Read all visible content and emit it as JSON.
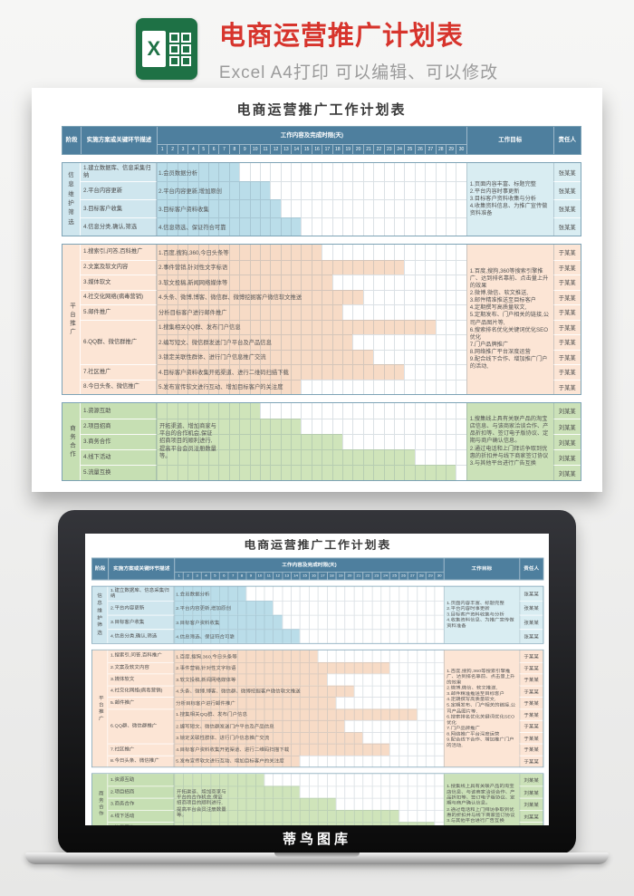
{
  "header": {
    "title": "电商运营推广计划表",
    "subtitle": "Excel A4打印 可以编辑、可以修改",
    "icon": "excel-icon"
  },
  "watermark": "蒂鸟图库",
  "colors": {
    "title_red": "#d7342c",
    "subtitle_gray": "#9b9b9b",
    "excel_green": "#1e7145",
    "table_header_teal": "#4e7f9e"
  },
  "sheet": {
    "title": "电商运营推广工作计划表",
    "columns": {
      "stage": "阶段",
      "desc": "实施方案或关键环节描述",
      "gantt": "工作内容及完成时限(天)",
      "goal": "工作目标",
      "owner": "责任人"
    },
    "days": 30,
    "day_labels": [
      "1",
      "2",
      "3",
      "4",
      "5",
      "6",
      "7",
      "8",
      "9",
      "10",
      "11",
      "12",
      "13",
      "14",
      "15",
      "16",
      "17",
      "18",
      "19",
      "20",
      "21",
      "22",
      "23",
      "24",
      "25",
      "26",
      "27",
      "28",
      "29",
      "30"
    ],
    "sections": [
      {
        "stage": "信息维护筛选",
        "fill": "#cfe6ee",
        "bar": "#badde9",
        "tint": "#d9edf2",
        "descs": [
          {
            "text": "1.建立数据库、信息采集归纳",
            "span": 1
          },
          {
            "text": "2.平台内容更新",
            "span": 1
          },
          {
            "text": "3.目标客户收集",
            "span": 1
          },
          {
            "text": "4.信息分类,确认,筛选",
            "span": 1
          }
        ],
        "rows": [
          {
            "content": "1.会员数据分析",
            "bar_end": 8,
            "owner": "张某某"
          },
          {
            "content": "2.平台内容更新,增加原创",
            "bar_end": 11,
            "owner": "张某某"
          },
          {
            "content": "3.目标客户资料收集",
            "bar_end": 12,
            "owner": "张某某"
          },
          {
            "content": "4.信息筛选、保证符合可靠",
            "bar_end": 14,
            "owner": "张某某"
          }
        ],
        "goal_lines": [
          "1.页面内容丰富、标题完整",
          "2.平台内容时事更新",
          "3.目标客户资料收集与分析",
          "4.收集资料信息、为推广宣传做资料准备"
        ]
      },
      {
        "stage": "平台推广",
        "fill": "#fce5d5",
        "bar": "#f7dbc6",
        "tint": "#fce5d5",
        "descs": [
          {
            "text": "1.搜索引,问答,百科推广",
            "span": 1
          },
          {
            "text": "2.文案及软文内容",
            "span": 1
          },
          {
            "text": "3.媒体软文",
            "span": 1
          },
          {
            "text": "4.社交化网络(病毒营销)",
            "span": 1
          },
          {
            "text": "5.邮件推广",
            "span": 1
          },
          {
            "text": "6.QQ群、微信群推广",
            "span": 3
          },
          {
            "text": "7.社区推广",
            "span": 1
          },
          {
            "text": "8.今日头条、微信推广",
            "span": 1
          }
        ],
        "rows": [
          {
            "content": "1.百度,搜狗,360,今日头条等",
            "bar_end": 16,
            "owner": "于某某"
          },
          {
            "content": "2.事件营销,针对性文字标语",
            "bar_end": 24,
            "owner": "于某某"
          },
          {
            "content": "3.软文投稿,新闻网络媒体等",
            "bar_end": 17,
            "owner": "于某某"
          },
          {
            "content": "4.头条、微博,博客、微信群、微博挖掘客户微信软文推送",
            "bar_end": 20,
            "owner": "于某某"
          },
          {
            "content": "分析目标客户进行邮件推广",
            "bar_end": 18,
            "owner": "于某某"
          },
          {
            "content": "1.搜集相关QQ群、发布门户信息",
            "bar_end": 27,
            "owner": "于某某"
          },
          {
            "content": "2.编写短文、微信群发送门户平台及产品信息",
            "bar_end": 19,
            "owner": "于某某"
          },
          {
            "content": "3.锁定关联性群体、进行门户信息推广交流",
            "bar_end": 21,
            "owner": "于某某"
          },
          {
            "content": "4.目标客户资料收集开拓渠道、进行二维码扫描下载",
            "bar_end": 24,
            "owner": "于某某"
          },
          {
            "content": "5.发布宣传软文进行互动、增加目标客户的关注度",
            "bar_end": 14,
            "owner": "于某某"
          }
        ],
        "goal_lines": [
          "1.百度,搜狗,360等搜索引擎推广、达到排名靠前、点击量上升的效果",
          "2.微博,微信、软文推送,",
          "3.邮件精准推送至目标客户",
          "4.定期撰写高质量软文,",
          "5.定期发布、门户相关的链接,公司产品图片等,",
          "6.搜索排名优化关键词优化SEO优化",
          "7.门户品牌推广",
          "8.网络推广平台深度运营",
          "9.配合线下合作、增加推广门户的活动,"
        ]
      },
      {
        "stage": "商务合作",
        "fill": "#c6dfb3",
        "bar": "#cfe4ba",
        "tint": "#cbe1b8",
        "descs": [
          {
            "text": "1.资源互助",
            "span": 1
          },
          {
            "text": "2.项目招商",
            "span": 1
          },
          {
            "text": "3.商务合作",
            "span": 1
          },
          {
            "text": "4.线下活动",
            "span": 1
          },
          {
            "text": "5.流量互换",
            "span": 1
          }
        ],
        "content_merged": "开拓渠道、增加商家与平台的合作机会,保证招商项目的顺利进行,提高平台会员注册数量等。",
        "rows": [
          {
            "content": null,
            "bar_end": 10,
            "owner": "刘某某"
          },
          {
            "content": null,
            "bar_end": 14,
            "owner": "刘某某"
          },
          {
            "content": null,
            "bar_end": 18,
            "owner": "刘某某"
          },
          {
            "content": null,
            "bar_end": 25,
            "owner": "刘某某"
          },
          {
            "content": null,
            "bar_end": 29,
            "owner": "刘某某"
          }
        ],
        "goal_lines": [
          "1.搜集线上具有关联产品的淘宝店信息、与该商家洽谈合作、产品折扣等、签订电子版协议、定期与商户确认信息。",
          "2.通过电话和上门拜访争取到优惠的折扣并与线下商家签订协议",
          "3.与其他平台进行广告互换"
        ]
      }
    ]
  }
}
